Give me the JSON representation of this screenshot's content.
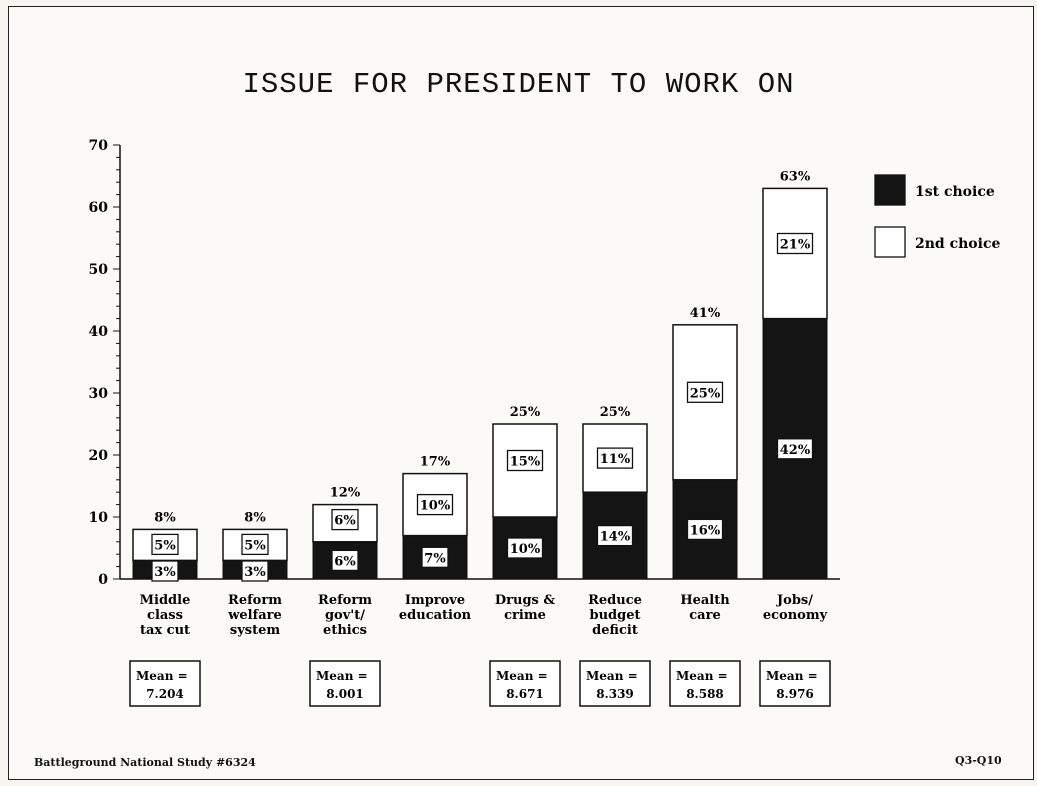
{
  "chart_data": {
    "type": "bar",
    "stacked": true,
    "title": "ISSUE FOR PRESIDENT TO WORK ON",
    "categories": [
      [
        "Middle",
        "class",
        "tax cut"
      ],
      [
        "Reform",
        "welfare",
        "system"
      ],
      [
        "Reform",
        "gov't/",
        "ethics"
      ],
      [
        "Improve",
        "education"
      ],
      [
        "Drugs &",
        "crime"
      ],
      [
        "Reduce",
        "budget",
        "deficit"
      ],
      [
        "Health",
        "care"
      ],
      [
        "Jobs/",
        "economy"
      ]
    ],
    "series": [
      {
        "name": "1st choice",
        "color": "#141414",
        "values": [
          3,
          3,
          6,
          7,
          10,
          14,
          16,
          42
        ],
        "labels": [
          "3%",
          "3%",
          "6%",
          "7%",
          "10%",
          "14%",
          "16%",
          "42%"
        ]
      },
      {
        "name": "2nd choice",
        "color": "#ffffff",
        "values": [
          5,
          5,
          6,
          10,
          15,
          11,
          25,
          21
        ],
        "labels": [
          "5%",
          "5%",
          "6%",
          "10%",
          "15%",
          "11%",
          "25%",
          "21%"
        ]
      }
    ],
    "total_labels": [
      "8%",
      "8%",
      "12%",
      "17%",
      "25%",
      "25%",
      "41%",
      "63%"
    ],
    "means": [
      [
        "Mean =",
        "7.204"
      ],
      null,
      [
        "Mean =",
        "8.001"
      ],
      null,
      [
        "Mean =",
        "8.671"
      ],
      [
        "Mean =",
        "8.339"
      ],
      [
        "Mean =",
        "8.588"
      ],
      [
        "Mean =",
        "8.976"
      ]
    ],
    "ylim": [
      0,
      70
    ],
    "yticks": [
      0,
      10,
      20,
      30,
      40,
      50,
      60,
      70
    ],
    "legend_position": "top-right",
    "grid": false
  },
  "footer": {
    "source": "Battleground National Study #6324",
    "question_ref": "Q3-Q10"
  }
}
